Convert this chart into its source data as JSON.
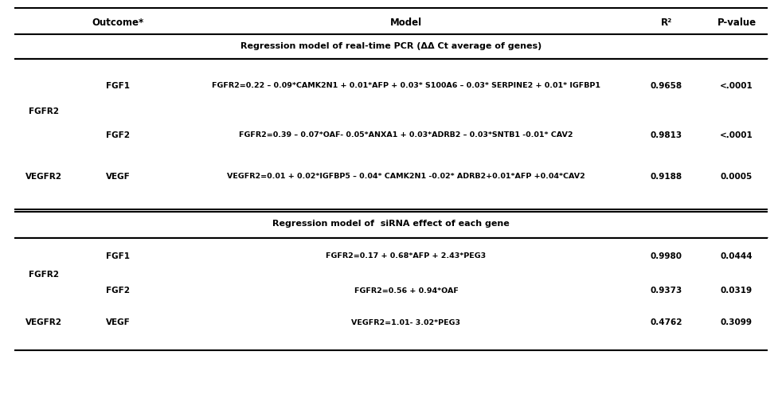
{
  "col_headers": [
    "Outcome*",
    "Model",
    "R²",
    "P-value"
  ],
  "section1_title": "Regression model of real-time PCR (ΔΔ Ct average of genes)",
  "section2_title": "Regression model of  siRNA effect of each gene",
  "rows_section1": [
    {
      "outcome_group": "FGFR2",
      "outcome": "FGF1",
      "model": "FGFR2=0.22 – 0.09*CAMK2N1 + 0.01*AFP + 0.03* S100A6 – 0.03* SERPINE2 + 0.01* IGFBP1",
      "r2": "0.9658",
      "pvalue": "<.0001"
    },
    {
      "outcome_group": "",
      "outcome": "FGF2",
      "model": "FGFR2=0.39 – 0.07*OAF- 0.05*ANXA1 + 0.03*ADRB2 – 0.03*SNTB1 -0.01* CAV2",
      "r2": "0.9813",
      "pvalue": "<.0001"
    },
    {
      "outcome_group": "VEGFR2",
      "outcome": "VEGF",
      "model": "VEGFR2=0.01 + 0.02*IGFBP5 – 0.04* CAMK2N1 -0.02* ADRB2+0.01*AFP +0.04*CAV2",
      "r2": "0.9188",
      "pvalue": "0.0005"
    }
  ],
  "rows_section2": [
    {
      "outcome_group": "FGFR2",
      "outcome": "FGF1",
      "model": "FGFR2=0.17 + 0.68*AFP + 2.43*PEG3",
      "r2": "0.9980",
      "pvalue": "0.0444"
    },
    {
      "outcome_group": "",
      "outcome": "FGF2",
      "model": "FGFR2=0.56 + 0.94*OAF",
      "r2": "0.9373",
      "pvalue": "0.0319"
    },
    {
      "outcome_group": "VEGFR2",
      "outcome": "VEGF",
      "model": "VEGFR2=1.01- 3.02*PEG3",
      "r2": "0.4762",
      "pvalue": "0.3099"
    }
  ],
  "bg_color": "#ffffff",
  "header_color": "#000000",
  "text_color": "#000000",
  "line_color": "#000000"
}
